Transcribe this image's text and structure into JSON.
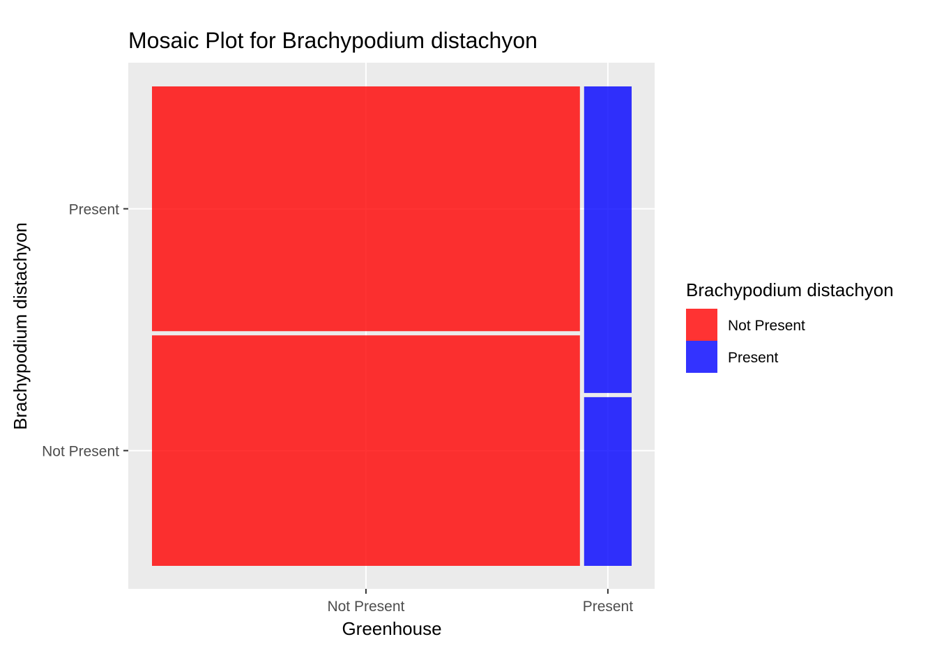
{
  "chart_data": {
    "type": "mosaic",
    "title": "Mosaic Plot for Brachypodium distachyon",
    "xlabel": "Greenhouse",
    "ylabel": "Brachypodium distachyon",
    "x_categories": [
      "Not Present",
      "Present"
    ],
    "y_categories": [
      "Not Present",
      "Present"
    ],
    "x_proportions": [
      0.9,
      0.1
    ],
    "cells": [
      {
        "x": "Not Present",
        "y": "Not Present",
        "proportion_within_x": 0.485
      },
      {
        "x": "Not Present",
        "y": "Present",
        "proportion_within_x": 0.515
      },
      {
        "x": "Present",
        "y": "Not Present",
        "proportion_within_x": 0.355
      },
      {
        "x": "Present",
        "y": "Present",
        "proportion_within_x": 0.645
      }
    ],
    "fill_by": "x",
    "legend": {
      "title": "Brachypodium distachyon",
      "position": "right",
      "items": [
        {
          "label": "Not Present",
          "color": "#FF0000"
        },
        {
          "label": "Present",
          "color": "#0000FF"
        }
      ]
    },
    "fill_alpha": 0.8,
    "grid": true,
    "panel_background": "#EBEBEB",
    "gridline_color": "#FFFFFF"
  }
}
